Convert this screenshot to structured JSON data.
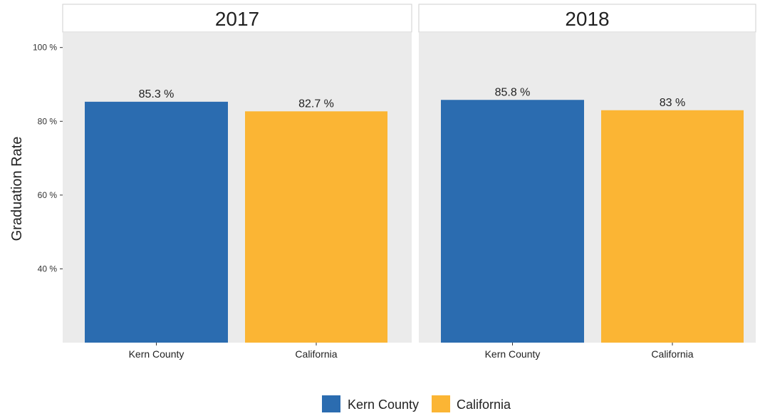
{
  "chart_data": {
    "type": "bar",
    "ylabel": "Graduation Rate",
    "ylim": [
      20,
      104
    ],
    "y_ticks": [
      40,
      60,
      80,
      100
    ],
    "y_tick_labels": [
      "40 %",
      "60 %",
      "80 %",
      "100 %"
    ],
    "grid": false,
    "facet_background": "#ebebeb",
    "categories": [
      "Kern County",
      "California"
    ],
    "panels": [
      {
        "title": "2017",
        "values": [
          85.3,
          82.7
        ],
        "value_labels": [
          "85.3 %",
          "82.7 %"
        ]
      },
      {
        "title": "2018",
        "values": [
          85.8,
          83.0
        ],
        "value_labels": [
          "85.8 %",
          "83 %"
        ]
      }
    ],
    "colors": {
      "Kern County": "#2b6cb0",
      "California": "#fbb534"
    },
    "legend": {
      "position": "bottom",
      "entries": [
        "Kern County",
        "California"
      ]
    }
  }
}
